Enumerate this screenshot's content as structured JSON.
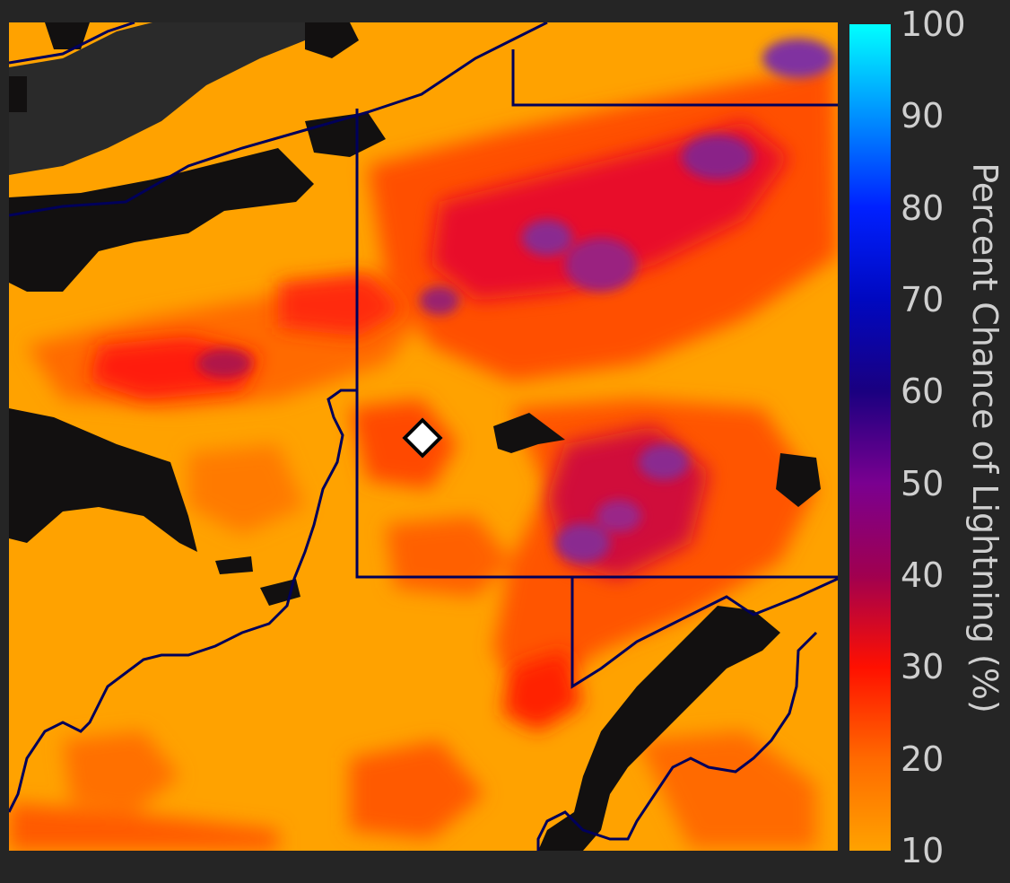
{
  "colors": {
    "background": "#252525",
    "no_data_land": "#121010",
    "no_data_water": "#2a2a2a",
    "boundary": "#00005a",
    "marker_fill": "#ffffff",
    "marker_stroke": "#000000"
  },
  "colorbar": {
    "title": "Percent Chance of Lightning (%)",
    "min": 10,
    "max": 100,
    "ticks": [
      "100",
      "90",
      "80",
      "70",
      "60",
      "50",
      "40",
      "30",
      "20",
      "10"
    ],
    "stops": [
      {
        "value": 10,
        "color": "#ffa200"
      },
      {
        "value": 20,
        "color": "#ff6a00"
      },
      {
        "value": 30,
        "color": "#ff1000"
      },
      {
        "value": 40,
        "color": "#a00050"
      },
      {
        "value": 50,
        "color": "#7a0090"
      },
      {
        "value": 60,
        "color": "#1a0080"
      },
      {
        "value": 70,
        "color": "#0008c0"
      },
      {
        "value": 80,
        "color": "#0020ff"
      },
      {
        "value": 90,
        "color": "#0090ff"
      },
      {
        "value": 100,
        "color": "#00ffff"
      }
    ]
  },
  "map": {
    "base_value": 10,
    "marker": "location-diamond-icon"
  }
}
